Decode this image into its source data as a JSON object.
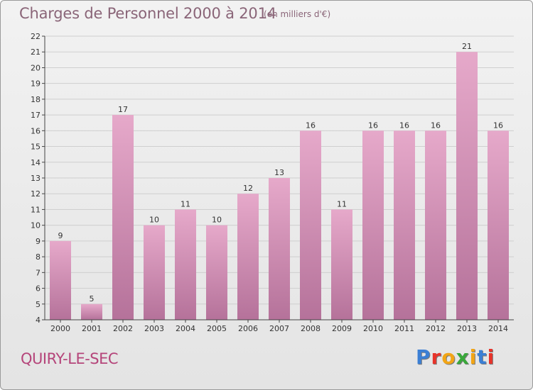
{
  "header": {
    "title": "Charges de Personnel 2000 à 2014",
    "subtitle": "(en milliers d'€)"
  },
  "footer": {
    "place": "QUIRY-LE-SEC",
    "logo": "Proxiti",
    "logo_colors": [
      "#3b7fd4",
      "#e8332a",
      "#f2a516",
      "#39a83a",
      "#f2a516",
      "#3b7fd4",
      "#e8332a"
    ]
  },
  "colors": {
    "bar_top": "#e6a9ca",
    "bar_bottom": "#b5729a",
    "grid": "#cfcfcf",
    "axis": "#444444"
  },
  "chart_data": {
    "type": "bar",
    "title": "Charges de Personnel 2000 à 2014",
    "subtitle": "(en milliers d'€)",
    "categories": [
      "2000",
      "2001",
      "2002",
      "2003",
      "2004",
      "2005",
      "2006",
      "2007",
      "2008",
      "2009",
      "2010",
      "2011",
      "2012",
      "2013",
      "2014"
    ],
    "values": [
      9,
      5,
      17,
      10,
      11,
      10,
      12,
      13,
      16,
      11,
      16,
      16,
      16,
      21,
      16
    ],
    "ylim": [
      4,
      22
    ],
    "yticks": [
      4,
      5,
      6,
      7,
      8,
      9,
      10,
      11,
      12,
      13,
      14,
      15,
      16,
      17,
      18,
      19,
      20,
      21,
      22
    ],
    "grid": true,
    "data_labels": true
  }
}
